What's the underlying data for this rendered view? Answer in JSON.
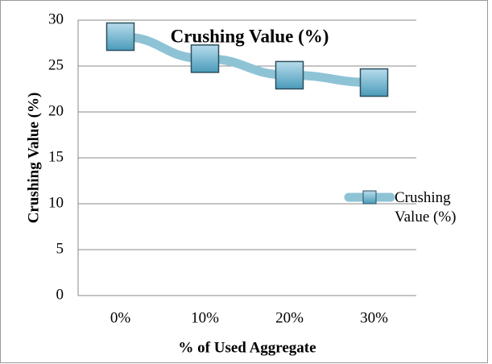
{
  "chart_data": {
    "type": "line",
    "title": "Crushing Value (%)",
    "x_label": "% of Used Aggregate",
    "y_label": "Crushing Value (%)",
    "categories": [
      "0%",
      "10%",
      "20%",
      "30%"
    ],
    "series": [
      {
        "name": "Crushing Value (%)",
        "color": "#8ec3d6",
        "marker_color": "#4a9bbb",
        "values": [
          28.2,
          25.8,
          24.0,
          23.2
        ]
      }
    ],
    "ylim": [
      0,
      30
    ],
    "yticks": [
      0,
      5,
      10,
      15,
      20,
      25,
      30
    ],
    "grid": true,
    "legend": "right"
  }
}
